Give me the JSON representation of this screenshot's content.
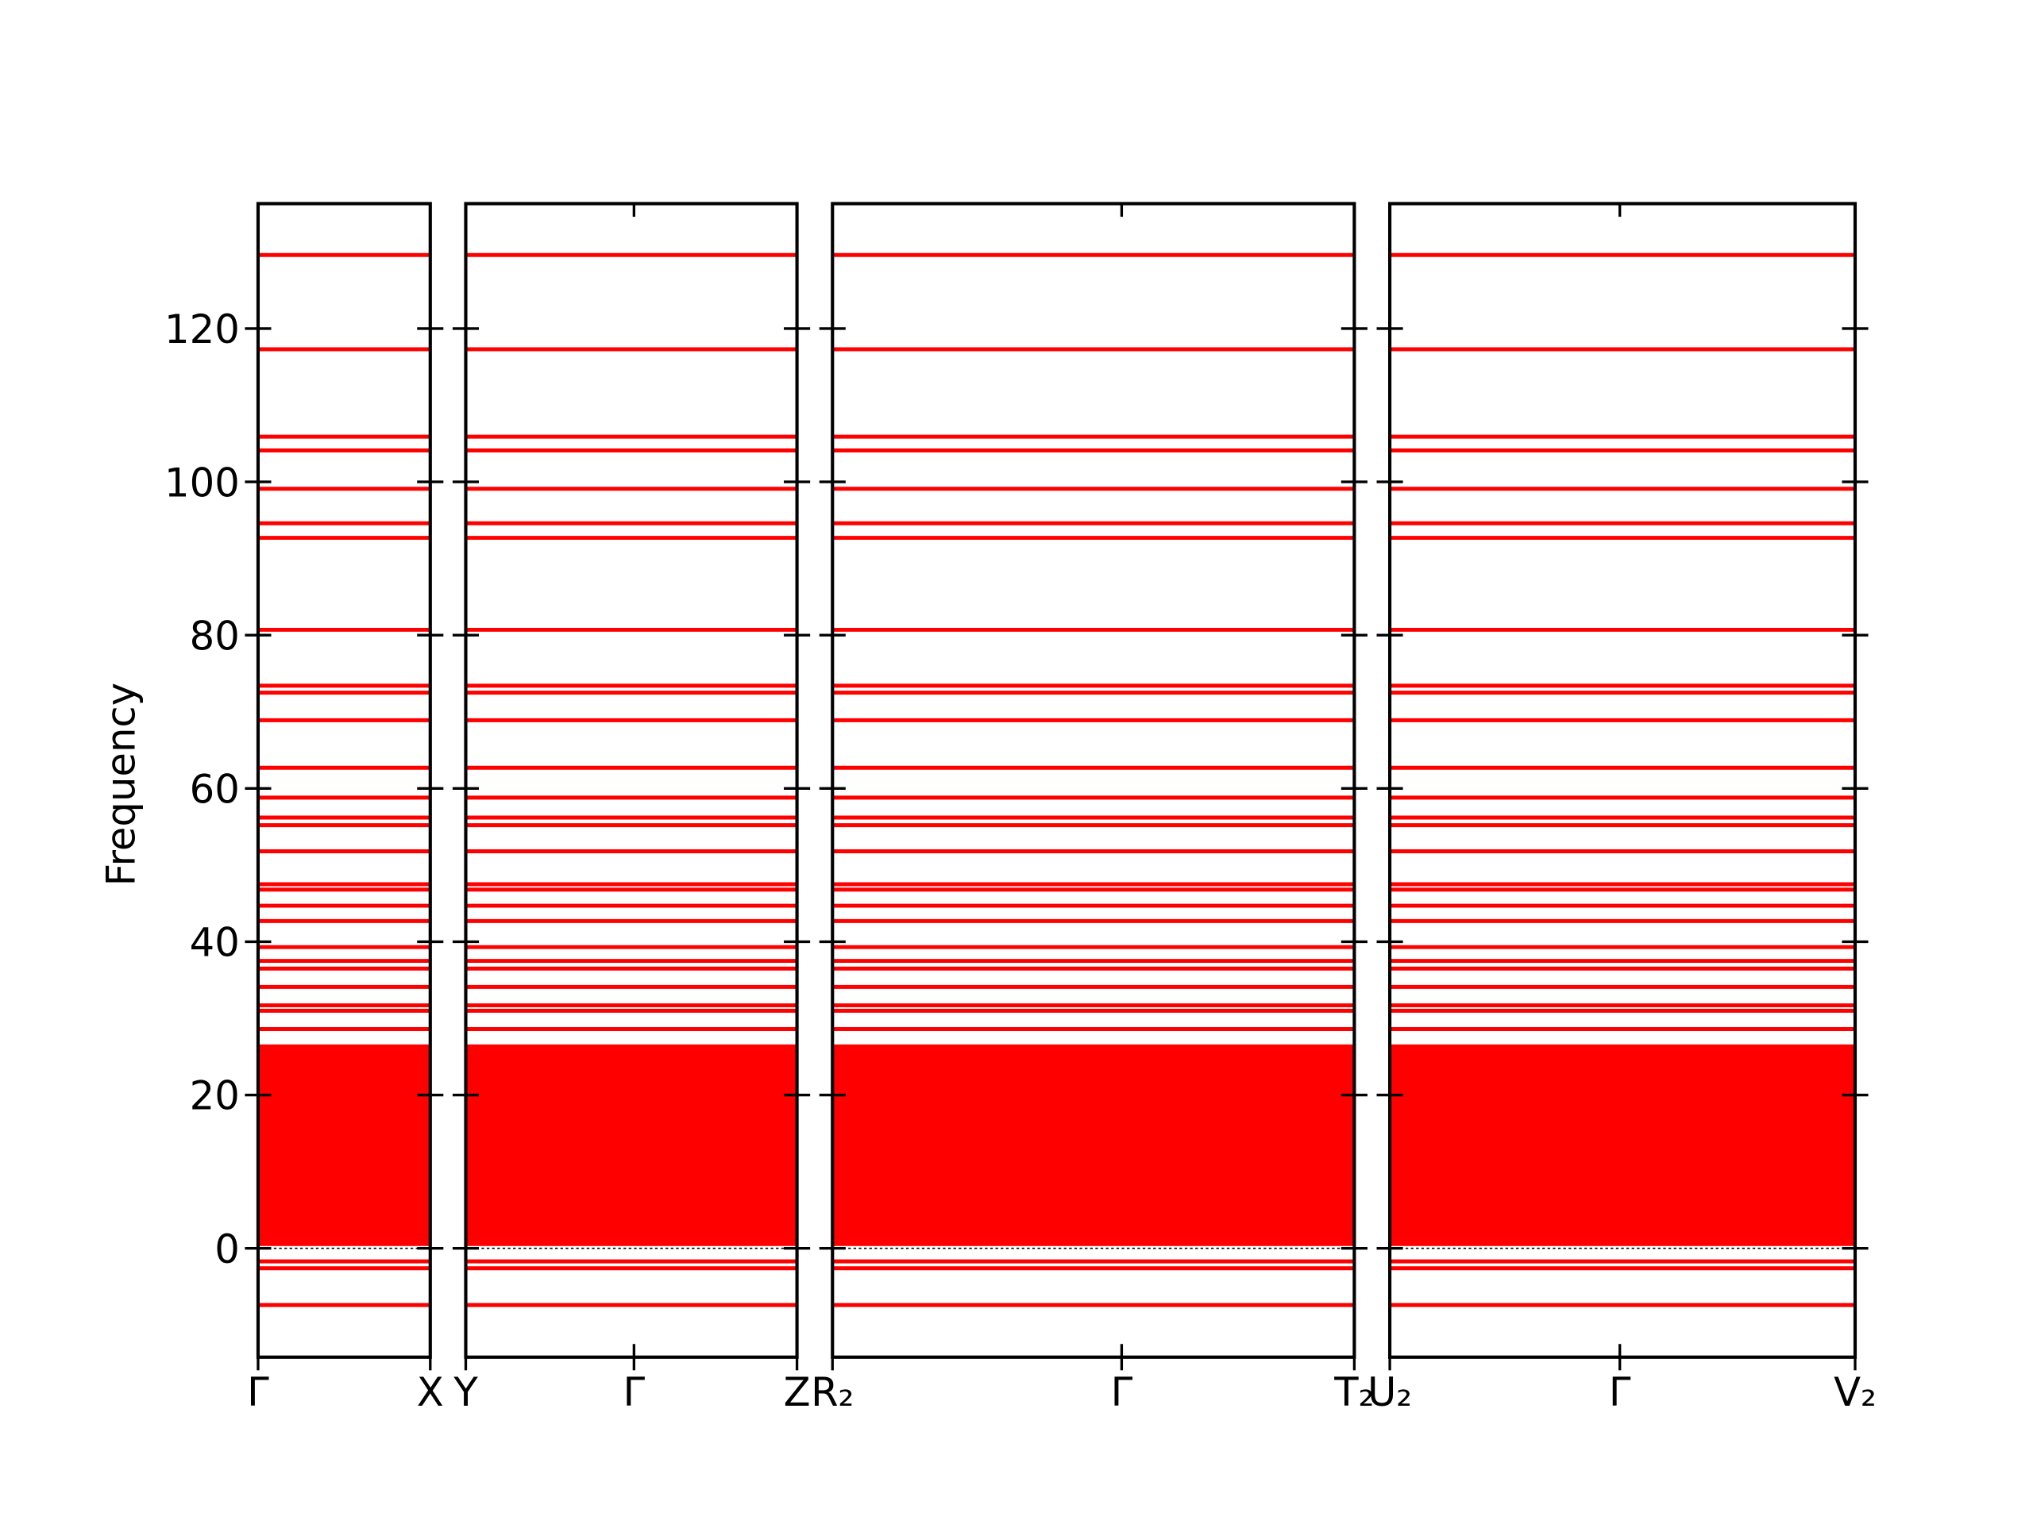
{
  "chart_data": {
    "type": "band",
    "ylabel": "Frequency",
    "ylim": [
      -14.2,
      136.3
    ],
    "yticks": [
      0,
      20,
      40,
      60,
      80,
      100,
      120
    ],
    "color": "#ff0000",
    "zero_line": true,
    "bands": [
      129.6,
      117.3,
      105.9,
      104.1,
      99.1,
      94.6,
      92.7,
      80.7,
      73.4,
      72.5,
      68.9,
      62.7,
      58.8,
      56.2,
      55.2,
      51.8,
      47.5,
      46.8,
      44.7,
      42.7,
      39.3,
      37.5,
      36.5,
      34.1,
      31.7,
      31.0,
      28.6,
      -1.7,
      -2.6,
      -7.4
    ],
    "dense_range": [
      0.3,
      26.6
    ],
    "panels": [
      {
        "xlim": [
          0,
          1.31
        ],
        "xticks": [
          {
            "value": 0,
            "label": "Γ"
          },
          {
            "value": 1.31,
            "label": "X"
          }
        ]
      },
      {
        "xlim": [
          0,
          2.52
        ],
        "xticks": [
          {
            "value": 0,
            "label": "Y"
          },
          {
            "value": 1.28,
            "label": "Γ"
          },
          {
            "value": 2.52,
            "label": "Z"
          }
        ]
      },
      {
        "xlim": [
          0,
          3.97
        ],
        "xticks": [
          {
            "value": 0,
            "label": "R₂"
          },
          {
            "value": 2.2,
            "label": "Γ"
          },
          {
            "value": 3.97,
            "label": "T₂"
          }
        ]
      },
      {
        "xlim": [
          0,
          3.54
        ],
        "xticks": [
          {
            "value": 0,
            "label": "U₂"
          },
          {
            "value": 1.75,
            "label": "Γ"
          },
          {
            "value": 3.54,
            "label": "V₂"
          }
        ]
      }
    ]
  }
}
